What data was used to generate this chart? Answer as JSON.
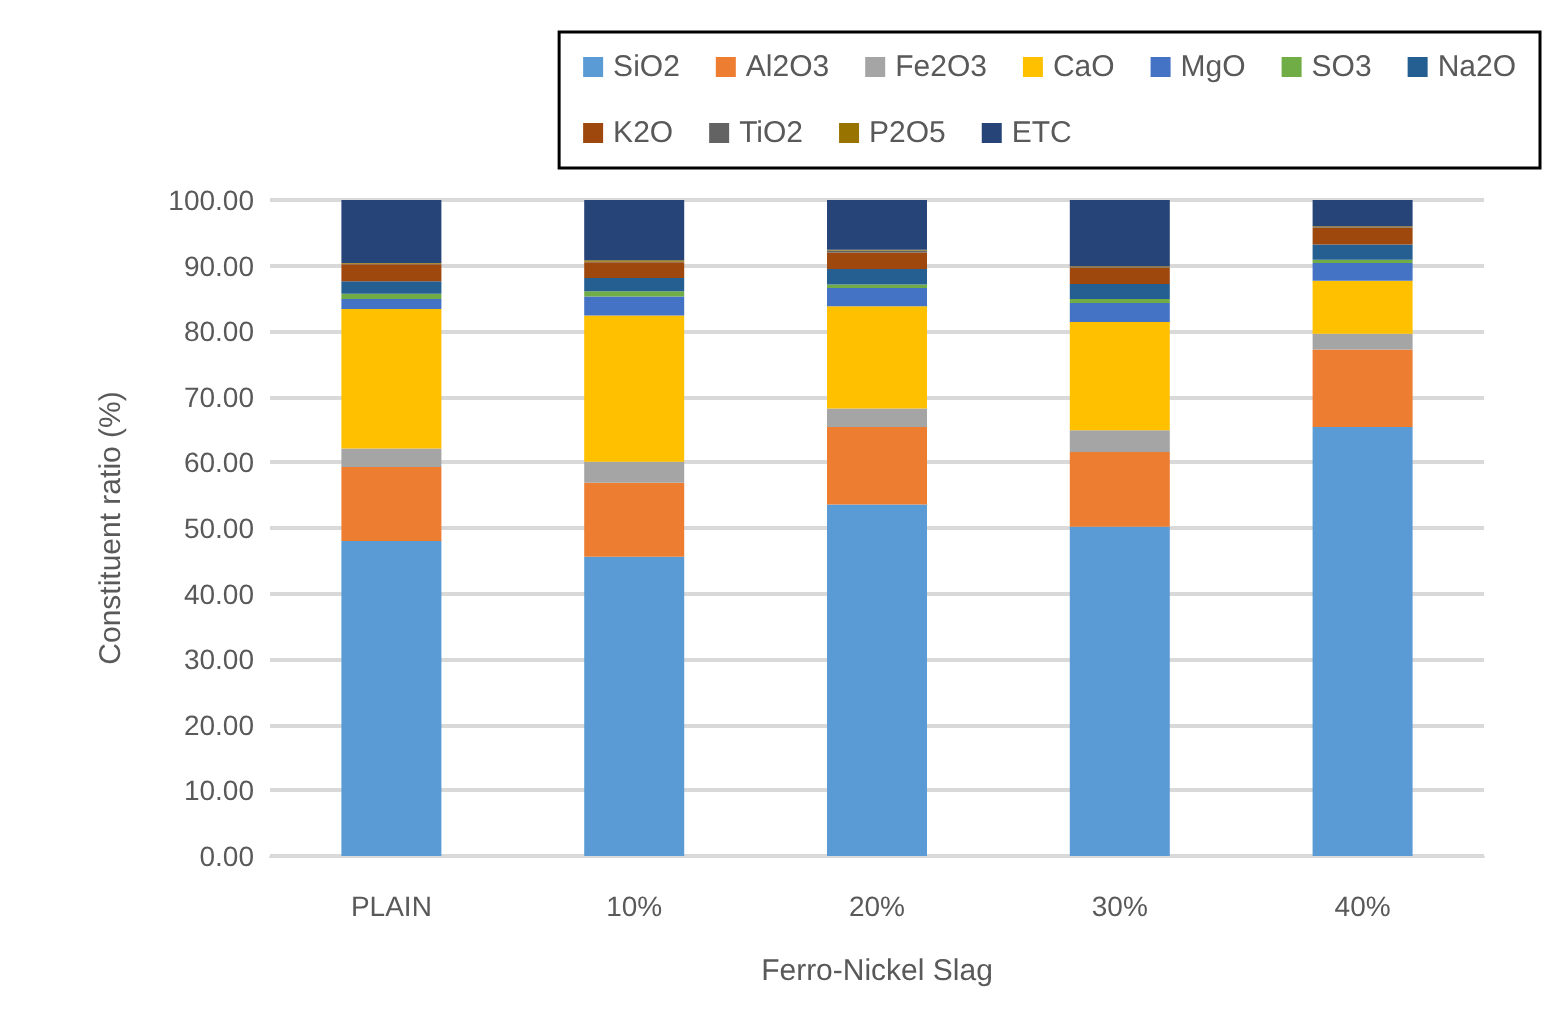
{
  "chart_data": {
    "type": "bar",
    "stacked": true,
    "xlabel": "Ferro-Nickel Slag",
    "ylabel": "Constituent ratio (%)",
    "categories": [
      "PLAIN",
      "10%",
      "20%",
      "30%",
      "40%"
    ],
    "series": [
      {
        "name": "SiO2",
        "color": "#5b9bd5",
        "values": [
          48.0,
          45.6,
          53.6,
          50.2,
          65.4
        ]
      },
      {
        "name": "Al2O3",
        "color": "#ed7d31",
        "values": [
          11.3,
          11.3,
          11.8,
          11.4,
          11.8
        ]
      },
      {
        "name": "Fe2O3",
        "color": "#a5a5a5",
        "values": [
          2.8,
          3.2,
          2.8,
          3.3,
          2.4
        ]
      },
      {
        "name": "CaO",
        "color": "#ffc000",
        "values": [
          21.3,
          22.3,
          15.6,
          16.5,
          8.1
        ]
      },
      {
        "name": "MgO",
        "color": "#4472c4",
        "values": [
          1.5,
          2.9,
          2.8,
          2.9,
          2.7
        ]
      },
      {
        "name": "SO3",
        "color": "#70ad47",
        "values": [
          0.8,
          0.8,
          0.5,
          0.6,
          0.5
        ]
      },
      {
        "name": "Na2O",
        "color": "#255e91",
        "values": [
          1.9,
          2.0,
          2.4,
          2.3,
          2.3
        ]
      },
      {
        "name": "K2O",
        "color": "#9e480e",
        "values": [
          2.6,
          2.4,
          2.5,
          2.5,
          2.6
        ]
      },
      {
        "name": "TiO2",
        "color": "#636363",
        "values": [
          0.1,
          0.1,
          0.3,
          0.1,
          0.1
        ]
      },
      {
        "name": "P2O5",
        "color": "#997300",
        "values": [
          0.1,
          0.2,
          0.1,
          0.1,
          0.1
        ]
      },
      {
        "name": "ETC",
        "color": "#264478",
        "values": [
          9.6,
          9.2,
          7.6,
          10.1,
          4.0
        ]
      }
    ],
    "ylim": [
      0,
      100
    ],
    "yticks": [
      {
        "value": 0,
        "label": "0.00"
      },
      {
        "value": 10,
        "label": "10.00"
      },
      {
        "value": 20,
        "label": "20.00"
      },
      {
        "value": 30,
        "label": "30.00"
      },
      {
        "value": 40,
        "label": "40.00"
      },
      {
        "value": 50,
        "label": "50.00"
      },
      {
        "value": 60,
        "label": "60.00"
      },
      {
        "value": 70,
        "label": "70.00"
      },
      {
        "value": 80,
        "label": "80.00"
      },
      {
        "value": 90,
        "label": "90.00"
      },
      {
        "value": 100,
        "label": "100.00"
      }
    ],
    "grid": "y",
    "legend": "top right"
  }
}
